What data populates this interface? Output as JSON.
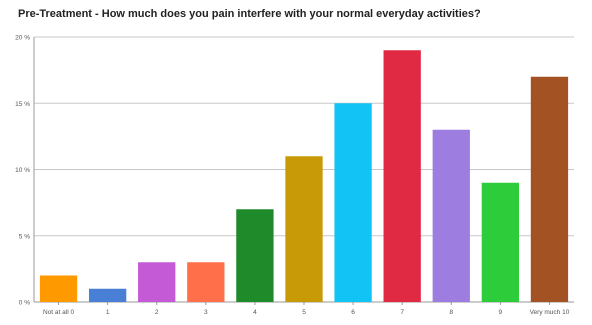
{
  "chart_data": {
    "type": "bar",
    "title": "Pre-Treatment - How much does you pain interfere with your normal everyday activities?",
    "xlabel": "",
    "ylabel": "",
    "categories": [
      "Not at all 0",
      "1",
      "2",
      "3",
      "4",
      "5",
      "6",
      "7",
      "8",
      "9",
      "Very much 10"
    ],
    "values": [
      2,
      1,
      3,
      3,
      7,
      11,
      15,
      19,
      13,
      9,
      17
    ],
    "y_tick_labels": [
      "0 %",
      "5 %",
      "10 %",
      "15 %",
      "20 %"
    ],
    "ylim": [
      0,
      20
    ],
    "grid": true,
    "legend": "none",
    "colors": [
      "#ff9900",
      "#4a7fd6",
      "#c45ad6",
      "#ff6f4a",
      "#1e8a2a",
      "#c99a08",
      "#11c4f5",
      "#e02a44",
      "#9d7ee0",
      "#2ccc3a",
      "#a35224"
    ]
  }
}
